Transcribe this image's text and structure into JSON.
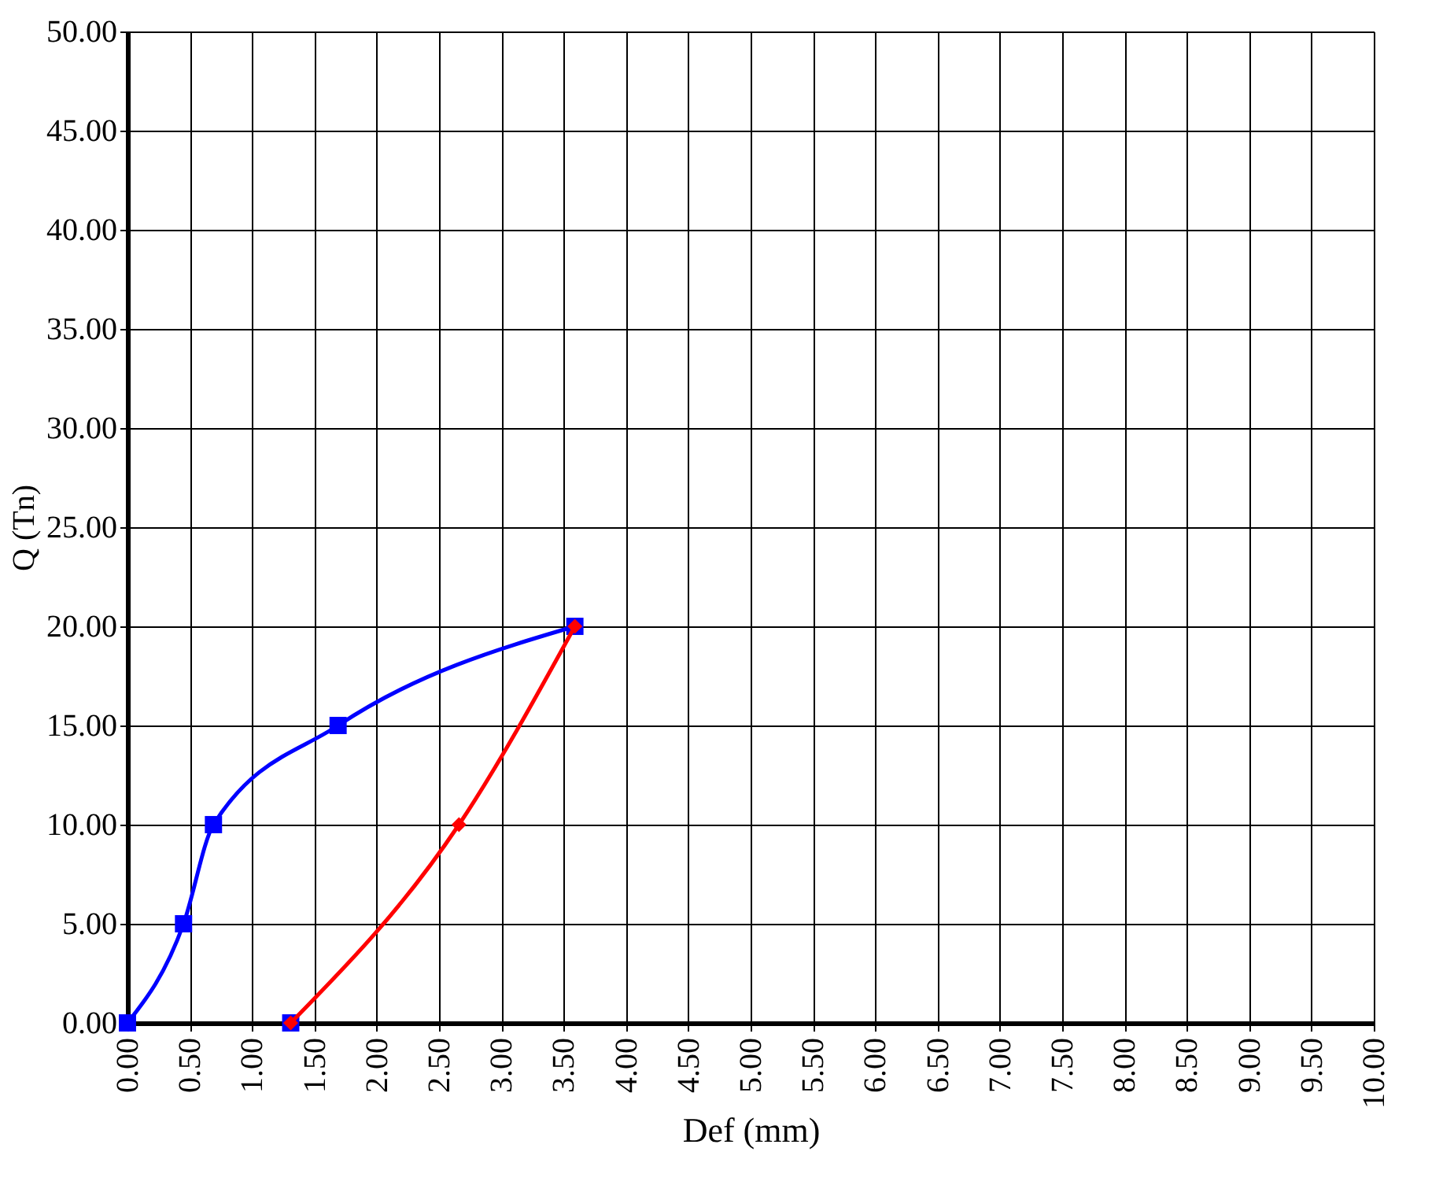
{
  "chart_data": {
    "type": "line",
    "xlabel": "Def (mm)",
    "ylabel": "Q (Tn)",
    "xlim": [
      0,
      10
    ],
    "ylim": [
      0,
      50
    ],
    "xticks": [
      {
        "value": 0,
        "label": "0.00"
      },
      {
        "value": 0.5,
        "label": "0.50"
      },
      {
        "value": 1,
        "label": "1.00"
      },
      {
        "value": 1.5,
        "label": "1.50"
      },
      {
        "value": 2,
        "label": "2.00"
      },
      {
        "value": 2.5,
        "label": "2.50"
      },
      {
        "value": 3,
        "label": "3.00"
      },
      {
        "value": 3.5,
        "label": "3.50"
      },
      {
        "value": 4,
        "label": "4.00"
      },
      {
        "value": 4.5,
        "label": "4.50"
      },
      {
        "value": 5,
        "label": "5.00"
      },
      {
        "value": 5.5,
        "label": "5.50"
      },
      {
        "value": 6,
        "label": "6.00"
      },
      {
        "value": 6.5,
        "label": "6.50"
      },
      {
        "value": 7,
        "label": "7.00"
      },
      {
        "value": 7.5,
        "label": "7.50"
      },
      {
        "value": 8,
        "label": "8.00"
      },
      {
        "value": 8.5,
        "label": "8.50"
      },
      {
        "value": 9,
        "label": "9.00"
      },
      {
        "value": 9.5,
        "label": "9.50"
      },
      {
        "value": 10,
        "label": "10.00"
      }
    ],
    "yticks": [
      {
        "value": 0,
        "label": "0.00"
      },
      {
        "value": 5,
        "label": "5.00"
      },
      {
        "value": 10,
        "label": "10.00"
      },
      {
        "value": 15,
        "label": "15.00"
      },
      {
        "value": 20,
        "label": "20.00"
      },
      {
        "value": 25,
        "label": "25.00"
      },
      {
        "value": 30,
        "label": "30.00"
      },
      {
        "value": 35,
        "label": "35.00"
      },
      {
        "value": 40,
        "label": "40.00"
      },
      {
        "value": 45,
        "label": "45.00"
      },
      {
        "value": 50,
        "label": "50.00"
      }
    ],
    "grid": true,
    "series": [
      {
        "type": "scatter",
        "color": "#0000ff",
        "marker": "square",
        "x": [
          1.31
        ],
        "values": [
          0
        ]
      },
      {
        "color": "#0000ff",
        "marker": "square",
        "x": [
          0,
          0.45,
          0.69,
          1.69,
          3.59
        ],
        "values": [
          0,
          5,
          10,
          15,
          20
        ]
      },
      {
        "color": "#ff0000",
        "marker": "diamond",
        "x": [
          1.31,
          2.66,
          3.59
        ],
        "values": [
          0,
          10,
          20
        ]
      }
    ]
  }
}
